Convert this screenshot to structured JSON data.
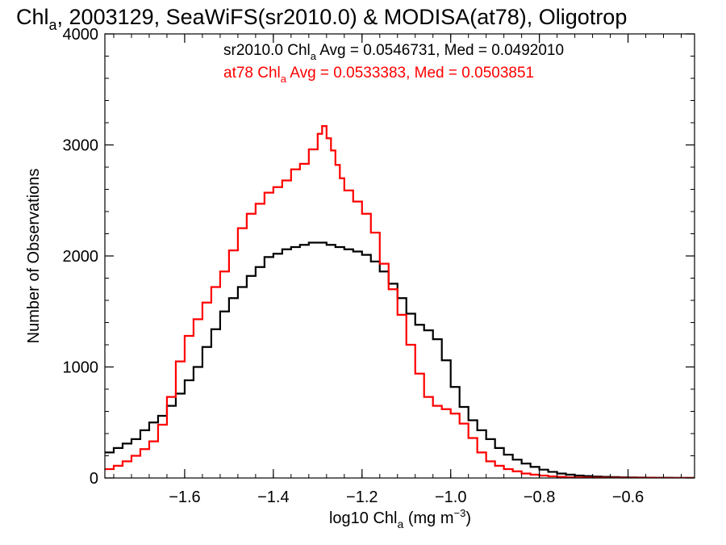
{
  "chart_data": {
    "type": "line",
    "title": {
      "main": "Chl",
      "sub": "a",
      "rest": ", 2003129, SeaWiFS(sr2010.0) & MODISA(at78), Oligotrop"
    },
    "xlabel": {
      "pre": "log10 Chl",
      "sub": "a",
      "mid": " (mg m",
      "sup": "−3",
      "post": ")"
    },
    "ylabel": "Number of Observations",
    "xlim": [
      -1.78,
      -0.45
    ],
    "ylim": [
      0,
      4000
    ],
    "xticks": [
      {
        "value": -1.6,
        "label": "−1.6"
      },
      {
        "value": -1.4,
        "label": "−1.4"
      },
      {
        "value": -1.2,
        "label": "−1.2"
      },
      {
        "value": -1.0,
        "label": "−1.0"
      },
      {
        "value": -0.8,
        "label": "−0.8"
      },
      {
        "value": -0.6,
        "label": "−0.6"
      }
    ],
    "yticks": [
      {
        "value": 0,
        "label": "0"
      },
      {
        "value": 1000,
        "label": "1000"
      },
      {
        "value": 2000,
        "label": "2000"
      },
      {
        "value": 3000,
        "label": "3000"
      },
      {
        "value": 4000,
        "label": "4000"
      }
    ],
    "grid": false,
    "step": "histogram",
    "series": [
      {
        "color": "#000000",
        "stats": {
          "pre": "sr2010.0 Chl",
          "sub": "a",
          "post": " Avg = 0.0546731, Med = 0.0492010"
        },
        "x": [
          -1.78,
          -1.76,
          -1.74,
          -1.72,
          -1.7,
          -1.68,
          -1.66,
          -1.64,
          -1.62,
          -1.6,
          -1.58,
          -1.56,
          -1.54,
          -1.52,
          -1.5,
          -1.48,
          -1.46,
          -1.44,
          -1.42,
          -1.4,
          -1.38,
          -1.36,
          -1.34,
          -1.32,
          -1.3,
          -1.28,
          -1.26,
          -1.24,
          -1.22,
          -1.2,
          -1.18,
          -1.16,
          -1.14,
          -1.12,
          -1.1,
          -1.08,
          -1.06,
          -1.04,
          -1.02,
          -1.0,
          -0.98,
          -0.96,
          -0.94,
          -0.92,
          -0.9,
          -0.88,
          -0.86,
          -0.84,
          -0.82,
          -0.8,
          -0.78,
          -0.76,
          -0.74,
          -0.72,
          -0.7,
          -0.68,
          -0.66,
          -0.64,
          -0.62,
          -0.6,
          -0.58,
          -0.56,
          -0.54,
          -0.52,
          -0.5,
          -0.48,
          -0.46
        ],
        "y": [
          230,
          270,
          310,
          350,
          430,
          500,
          560,
          650,
          760,
          880,
          1000,
          1180,
          1340,
          1500,
          1620,
          1720,
          1820,
          1900,
          1990,
          2020,
          2060,
          2080,
          2100,
          2120,
          2120,
          2100,
          2080,
          2060,
          2040,
          2010,
          1950,
          1860,
          1750,
          1620,
          1480,
          1380,
          1330,
          1250,
          1060,
          820,
          640,
          520,
          430,
          350,
          270,
          210,
          165,
          130,
          100,
          75,
          55,
          40,
          30,
          22,
          17,
          13,
          10,
          8,
          6,
          5,
          4,
          3,
          2,
          2,
          1,
          1,
          1
        ]
      },
      {
        "color": "#ff0000",
        "stats": {
          "pre": "at78 Chl",
          "sub": "a",
          "post": " Avg = 0.0533383, Med = 0.0503851"
        },
        "x": [
          -1.78,
          -1.76,
          -1.74,
          -1.72,
          -1.7,
          -1.68,
          -1.66,
          -1.64,
          -1.62,
          -1.6,
          -1.58,
          -1.56,
          -1.54,
          -1.52,
          -1.5,
          -1.48,
          -1.46,
          -1.44,
          -1.42,
          -1.4,
          -1.38,
          -1.36,
          -1.34,
          -1.32,
          -1.3,
          -1.29,
          -1.28,
          -1.27,
          -1.26,
          -1.25,
          -1.24,
          -1.22,
          -1.2,
          -1.18,
          -1.16,
          -1.14,
          -1.12,
          -1.1,
          -1.08,
          -1.06,
          -1.04,
          -1.02,
          -1.0,
          -0.98,
          -0.96,
          -0.94,
          -0.92,
          -0.9,
          -0.88,
          -0.86,
          -0.84,
          -0.82,
          -0.8,
          -0.78,
          -0.76,
          -0.74,
          -0.72,
          -0.7,
          -0.68,
          -0.66,
          -0.64,
          -0.62,
          -0.6,
          -0.58,
          -0.56,
          -0.54,
          -0.52,
          -0.5,
          -0.48,
          -0.46
        ],
        "y": [
          80,
          110,
          150,
          200,
          260,
          330,
          480,
          730,
          1050,
          1280,
          1430,
          1580,
          1720,
          1860,
          2050,
          2250,
          2380,
          2470,
          2570,
          2620,
          2680,
          2780,
          2830,
          2960,
          3100,
          3170,
          3060,
          2950,
          2820,
          2700,
          2590,
          2490,
          2380,
          2210,
          1930,
          1700,
          1470,
          1200,
          940,
          730,
          650,
          620,
          580,
          490,
          360,
          230,
          150,
          110,
          80,
          60,
          40,
          30,
          22,
          15,
          10,
          7,
          5,
          4,
          3,
          2,
          2,
          1,
          1,
          1,
          1,
          0,
          0,
          0,
          0,
          0
        ]
      }
    ]
  }
}
